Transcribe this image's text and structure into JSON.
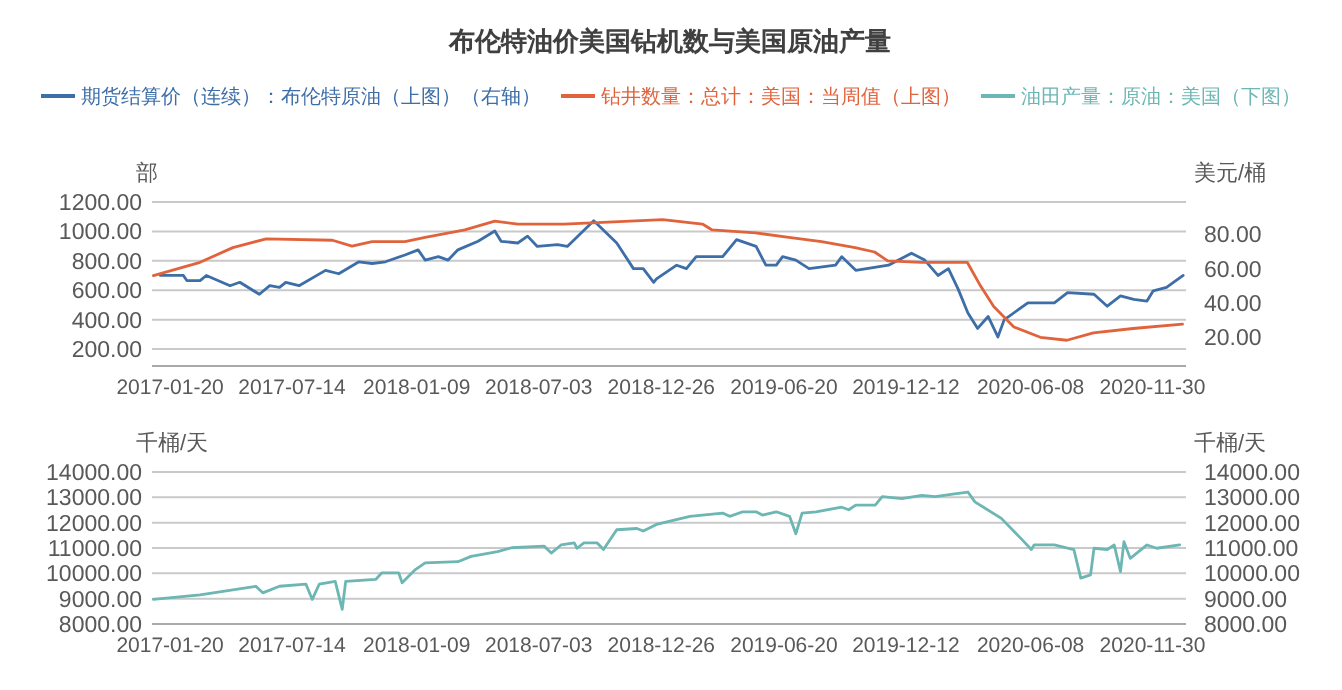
{
  "chart_data": [
    {
      "type": "line",
      "title": "布伦特油价美国钻机数与美国原油产量",
      "ylabel": "部",
      "y2label": "美元/桶",
      "legend": "top",
      "grid": "y",
      "xlim": [
        "2016-12-25",
        "2021-01-17"
      ],
      "xticks": [
        "2017-01-20",
        "2017-07-14",
        "2018-01-09",
        "2018-07-03",
        "2018-12-26",
        "2019-06-20",
        "2019-12-12",
        "2020-06-08",
        "2020-11-30"
      ],
      "ylim": [
        85,
        1200
      ],
      "yticks": [
        {
          "value": 200,
          "label": "200.00"
        },
        {
          "value": 400,
          "label": "400.00"
        },
        {
          "value": 600,
          "label": "600.00"
        },
        {
          "value": 800,
          "label": "800.00"
        },
        {
          "value": 1000,
          "label": "1000.00"
        },
        {
          "value": 1200,
          "label": "1200.00"
        }
      ],
      "y2lim": [
        3,
        99
      ],
      "y2ticks": [
        {
          "value": 20,
          "label": "20.00"
        },
        {
          "value": 40,
          "label": "40.00"
        },
        {
          "value": 60,
          "label": "60.00"
        },
        {
          "value": 80,
          "label": "80.00"
        }
      ],
      "series": [
        {
          "name": "期货结算价（连续）：布伦特原油（上图）（右轴）",
          "color": "#3d6ea8",
          "axis": "y2",
          "x": [
            "2017-01-06",
            "2017-02-08",
            "2017-02-13",
            "2017-03-04",
            "2017-03-13",
            "2017-04-16",
            "2017-04-30",
            "2017-05-28",
            "2017-06-12",
            "2017-06-26",
            "2017-07-05",
            "2017-07-24",
            "2017-08-31",
            "2017-09-19",
            "2017-10-18",
            "2017-11-06",
            "2017-11-25",
            "2017-12-23",
            "2018-01-11",
            "2018-01-21",
            "2018-02-09",
            "2018-02-23",
            "2018-03-09",
            "2018-04-07",
            "2018-05-01",
            "2018-05-10",
            "2018-06-03",
            "2018-06-17",
            "2018-07-01",
            "2018-07-30",
            "2018-08-13",
            "2018-09-20",
            "2018-10-23",
            "2018-11-16",
            "2018-11-30",
            "2018-12-15",
            "2018-12-19",
            "2019-01-17",
            "2019-01-31",
            "2019-02-14",
            "2019-03-24",
            "2019-04-13",
            "2019-05-11",
            "2019-05-25",
            "2019-06-09",
            "2019-06-18",
            "2019-07-07",
            "2019-07-26",
            "2019-09-02",
            "2019-09-11",
            "2019-10-01",
            "2019-11-17",
            "2019-12-20",
            "2020-01-08",
            "2020-01-27",
            "2020-02-11",
            "2020-02-25",
            "2020-03-10",
            "2020-03-24",
            "2020-04-08",
            "2020-04-22",
            "2020-05-01",
            "2020-06-04",
            "2020-07-12",
            "2020-07-31",
            "2020-09-07",
            "2020-09-26",
            "2020-10-15",
            "2020-11-03",
            "2020-11-22",
            "2020-12-01",
            "2020-12-20",
            "2020-12-30",
            "2021-01-13"
          ],
          "values": [
            56,
            56,
            53,
            53,
            56,
            50,
            52,
            45,
            50,
            49,
            52,
            50,
            59,
            57,
            64,
            63,
            64,
            68,
            71,
            65,
            67,
            65,
            71,
            76,
            82,
            76,
            75,
            79,
            73,
            74,
            73,
            88,
            75,
            60,
            60,
            52,
            54,
            62,
            60,
            67,
            67,
            77,
            73,
            62,
            62,
            67,
            65,
            60,
            62,
            67,
            59,
            62,
            69,
            65,
            56,
            60,
            48,
            34,
            25,
            32,
            20,
            30,
            40,
            40,
            46,
            45,
            38,
            44,
            42,
            41,
            47,
            49,
            52,
            56
          ]
        },
        {
          "name": "钻井数量：总计：美国：当周值（上图）",
          "color": "#e0633c",
          "x": [
            "2016-12-27",
            "2017-03-04",
            "2017-04-20",
            "2017-06-07",
            "2017-09-10",
            "2017-10-08",
            "2017-11-06",
            "2017-12-23",
            "2018-01-21",
            "2018-03-19",
            "2018-05-01",
            "2018-06-03",
            "2018-08-08",
            "2018-09-25",
            "2018-12-28",
            "2019-02-23",
            "2019-03-09",
            "2019-05-10",
            "2019-06-27",
            "2019-08-13",
            "2019-09-30",
            "2019-10-28",
            "2019-11-16",
            "2020-01-03",
            "2020-03-09",
            "2020-03-28",
            "2020-04-16",
            "2020-05-15",
            "2020-06-22",
            "2020-07-30",
            "2020-09-06",
            "2020-11-02",
            "2021-01-12"
          ],
          "values": [
            700,
            790,
            890,
            950,
            940,
            900,
            930,
            930,
            960,
            1010,
            1070,
            1050,
            1050,
            1060,
            1080,
            1050,
            1010,
            990,
            960,
            930,
            890,
            860,
            800,
            790,
            790,
            630,
            490,
            350,
            280,
            260,
            310,
            340,
            370
          ]
        }
      ]
    },
    {
      "type": "line",
      "ylabel": "千桶/天",
      "y2label": "千桶/天",
      "legend": "top",
      "grid": "y",
      "xlim": [
        "2016-12-25",
        "2021-01-17"
      ],
      "xticks": [
        "2017-01-20",
        "2017-07-14",
        "2018-01-09",
        "2018-07-03",
        "2018-12-26",
        "2019-06-20",
        "2019-12-12",
        "2020-06-08",
        "2020-11-30"
      ],
      "ylim": [
        8000,
        14000
      ],
      "yticks": [
        {
          "value": 8000,
          "label": "8000.00"
        },
        {
          "value": 9000,
          "label": "9000.00"
        },
        {
          "value": 10000,
          "label": "10000.00"
        },
        {
          "value": 11000,
          "label": "11000.00"
        },
        {
          "value": 12000,
          "label": "12000.00"
        },
        {
          "value": 13000,
          "label": "13000.00"
        },
        {
          "value": 14000,
          "label": "14000.00"
        }
      ],
      "y2lim": [
        8000,
        14000
      ],
      "y2ticks": [
        {
          "value": 8000,
          "label": "8000.00"
        },
        {
          "value": 9000,
          "label": "9000.00"
        },
        {
          "value": 10000,
          "label": "10000.00"
        },
        {
          "value": 11000,
          "label": "11000.00"
        },
        {
          "value": 12000,
          "label": "12000.00"
        },
        {
          "value": 13000,
          "label": "13000.00"
        },
        {
          "value": 14000,
          "label": "14000.00"
        }
      ],
      "series": [
        {
          "name": "油田产量：原油：美国（下图）",
          "color": "#6cb6b3",
          "x": [
            "2016-12-27",
            "2017-03-04",
            "2017-05-23",
            "2017-06-02",
            "2017-06-26",
            "2017-08-03",
            "2017-08-12",
            "2017-08-22",
            "2017-09-14",
            "2017-09-24",
            "2017-09-29",
            "2017-11-11",
            "2017-11-20",
            "2017-12-14",
            "2017-12-19",
            "2018-01-07",
            "2018-01-21",
            "2018-03-09",
            "2018-03-28",
            "2018-05-05",
            "2018-05-25",
            "2018-07-11",
            "2018-07-21",
            "2018-08-04",
            "2018-08-23",
            "2018-08-27",
            "2018-09-06",
            "2018-09-25",
            "2018-10-04",
            "2018-10-23",
            "2018-11-21",
            "2018-11-30",
            "2018-12-19",
            "2019-02-05",
            "2019-03-24",
            "2019-04-03",
            "2019-04-22",
            "2019-05-11",
            "2019-05-20",
            "2019-06-09",
            "2019-06-28",
            "2019-07-07",
            "2019-07-16",
            "2019-08-05",
            "2019-09-11",
            "2019-09-21",
            "2019-10-01",
            "2019-10-29",
            "2019-11-08",
            "2019-12-06",
            "2020-01-04",
            "2020-01-23",
            "2020-02-20",
            "2020-03-10",
            "2020-03-20",
            "2020-04-27",
            "2020-05-25",
            "2020-06-09",
            "2020-06-13",
            "2020-07-12",
            "2020-08-09",
            "2020-08-19",
            "2020-09-02",
            "2020-09-07",
            "2020-09-26",
            "2020-10-06",
            "2020-10-15",
            "2020-10-20",
            "2020-10-29",
            "2020-11-22",
            "2020-12-06",
            "2021-01-08"
          ],
          "values": [
            8970,
            9150,
            9490,
            9230,
            9490,
            9570,
            8970,
            9570,
            9680,
            8580,
            9680,
            9760,
            10020,
            10020,
            9630,
            10150,
            10410,
            10460,
            10670,
            10860,
            11010,
            11070,
            10800,
            11120,
            11200,
            10990,
            11200,
            11200,
            10940,
            11720,
            11770,
            11670,
            11930,
            12250,
            12380,
            12250,
            12430,
            12430,
            12300,
            12430,
            12250,
            11560,
            12380,
            12430,
            12610,
            12510,
            12690,
            12690,
            13030,
            12950,
            13080,
            13030,
            13140,
            13210,
            12820,
            12170,
            11380,
            10940,
            11120,
            11120,
            10940,
            9810,
            9940,
            10990,
            10940,
            11120,
            10070,
            11250,
            10590,
            11120,
            10990,
            11120
          ]
        }
      ]
    }
  ]
}
